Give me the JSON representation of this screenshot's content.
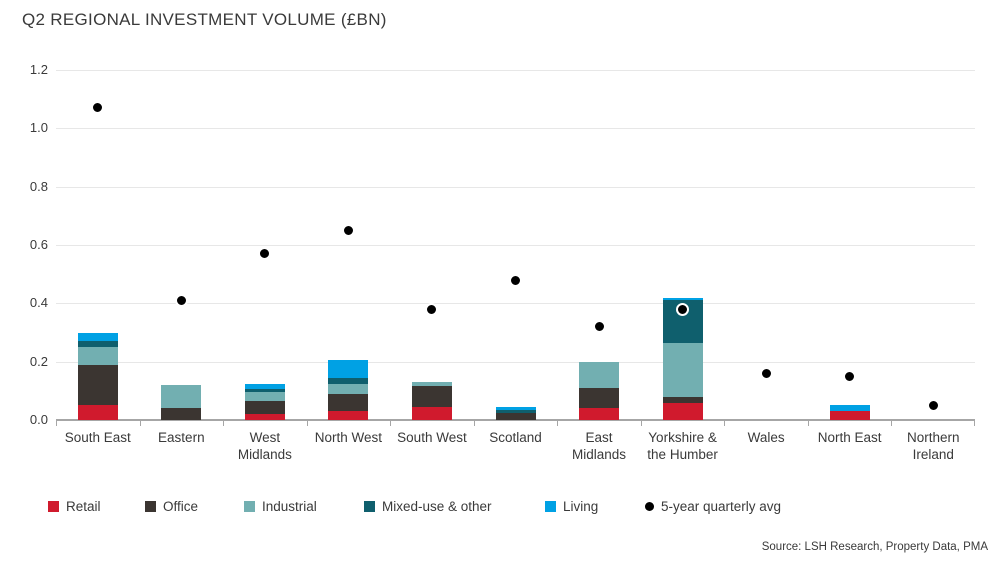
{
  "header": {
    "title": "Q2 REGIONAL INVESTMENT VOLUME (£BN)"
  },
  "footer": {
    "source": "Source: LSH Research, Property Data, PMA"
  },
  "chart_data": {
    "type": "bar",
    "subtype": "stacked-bars-with-point-overlay",
    "title": "Q2 REGIONAL INVESTMENT VOLUME (£BN)",
    "ylabel": "",
    "xlabel": "",
    "ylim": [
      0,
      1.2
    ],
    "grid": true,
    "legend_position": "bottom",
    "yticks": [
      {
        "label": "0.0",
        "value": 0.0
      },
      {
        "label": "0.2",
        "value": 0.2
      },
      {
        "label": "0.4",
        "value": 0.4
      },
      {
        "label": "0.6",
        "value": 0.6
      },
      {
        "label": "0.8",
        "value": 0.8
      },
      {
        "label": "1.0",
        "value": 1.0
      },
      {
        "label": "1.2",
        "value": 1.2
      }
    ],
    "categories": [
      {
        "label": "South East",
        "lines": [
          "South East"
        ]
      },
      {
        "label": "Eastern",
        "lines": [
          "Eastern"
        ]
      },
      {
        "label": "West Midlands",
        "lines": [
          "West",
          "Midlands"
        ]
      },
      {
        "label": "North West",
        "lines": [
          "North West"
        ]
      },
      {
        "label": "South West",
        "lines": [
          "South West"
        ]
      },
      {
        "label": "Scotland",
        "lines": [
          "Scotland"
        ]
      },
      {
        "label": "East Midlands",
        "lines": [
          "East",
          "Midlands"
        ]
      },
      {
        "label": "Yorkshire & the Humber",
        "lines": [
          "Yorkshire &",
          "the Humber"
        ]
      },
      {
        "label": "Wales",
        "lines": [
          "Wales"
        ]
      },
      {
        "label": "North East",
        "lines": [
          "North East"
        ]
      },
      {
        "label": "Northern Ireland",
        "lines": [
          "Northern",
          "Ireland"
        ]
      }
    ],
    "series": [
      {
        "name": "Retail",
        "color": "#d01a2d",
        "values": [
          0.05,
          0,
          0.02,
          0.03,
          0.045,
          0,
          0.04,
          0.06,
          0,
          0.03,
          0
        ]
      },
      {
        "name": "Office",
        "color": "#3b3531",
        "values": [
          0.14,
          0.04,
          0.045,
          0.06,
          0.07,
          0.025,
          0.07,
          0.02,
          0,
          0,
          0
        ]
      },
      {
        "name": "Industrial",
        "color": "#72afb1",
        "values": [
          0.06,
          0.08,
          0.03,
          0.035,
          0.015,
          0,
          0.09,
          0.185,
          0,
          0,
          0
        ]
      },
      {
        "name": "Mixed-use & other",
        "color": "#0f5f6d",
        "values": [
          0.02,
          0,
          0.01,
          0.02,
          0,
          0.01,
          0,
          0.145,
          0,
          0,
          0
        ]
      },
      {
        "name": "Living",
        "color": "#00a1e4",
        "values": [
          0.03,
          0,
          0.02,
          0.06,
          0,
          0.01,
          0,
          0.01,
          0,
          0.02,
          0
        ]
      }
    ],
    "points": {
      "name": "5-year quarterly avg",
      "color": "#000000",
      "values": [
        1.07,
        0.41,
        0.57,
        0.65,
        0.38,
        0.48,
        0.32,
        0.38,
        0.16,
        0.15,
        0.05
      ]
    },
    "bar_totals": [
      0.3,
      0.12,
      0.125,
      0.205,
      0.13,
      0.045,
      0.2,
      0.42,
      0,
      0.05,
      0
    ],
    "colors": {
      "gridline": "#e7e7e7",
      "axis": "#a6a6a6",
      "text": "#3a3a3a",
      "background": "#ffffff"
    }
  }
}
